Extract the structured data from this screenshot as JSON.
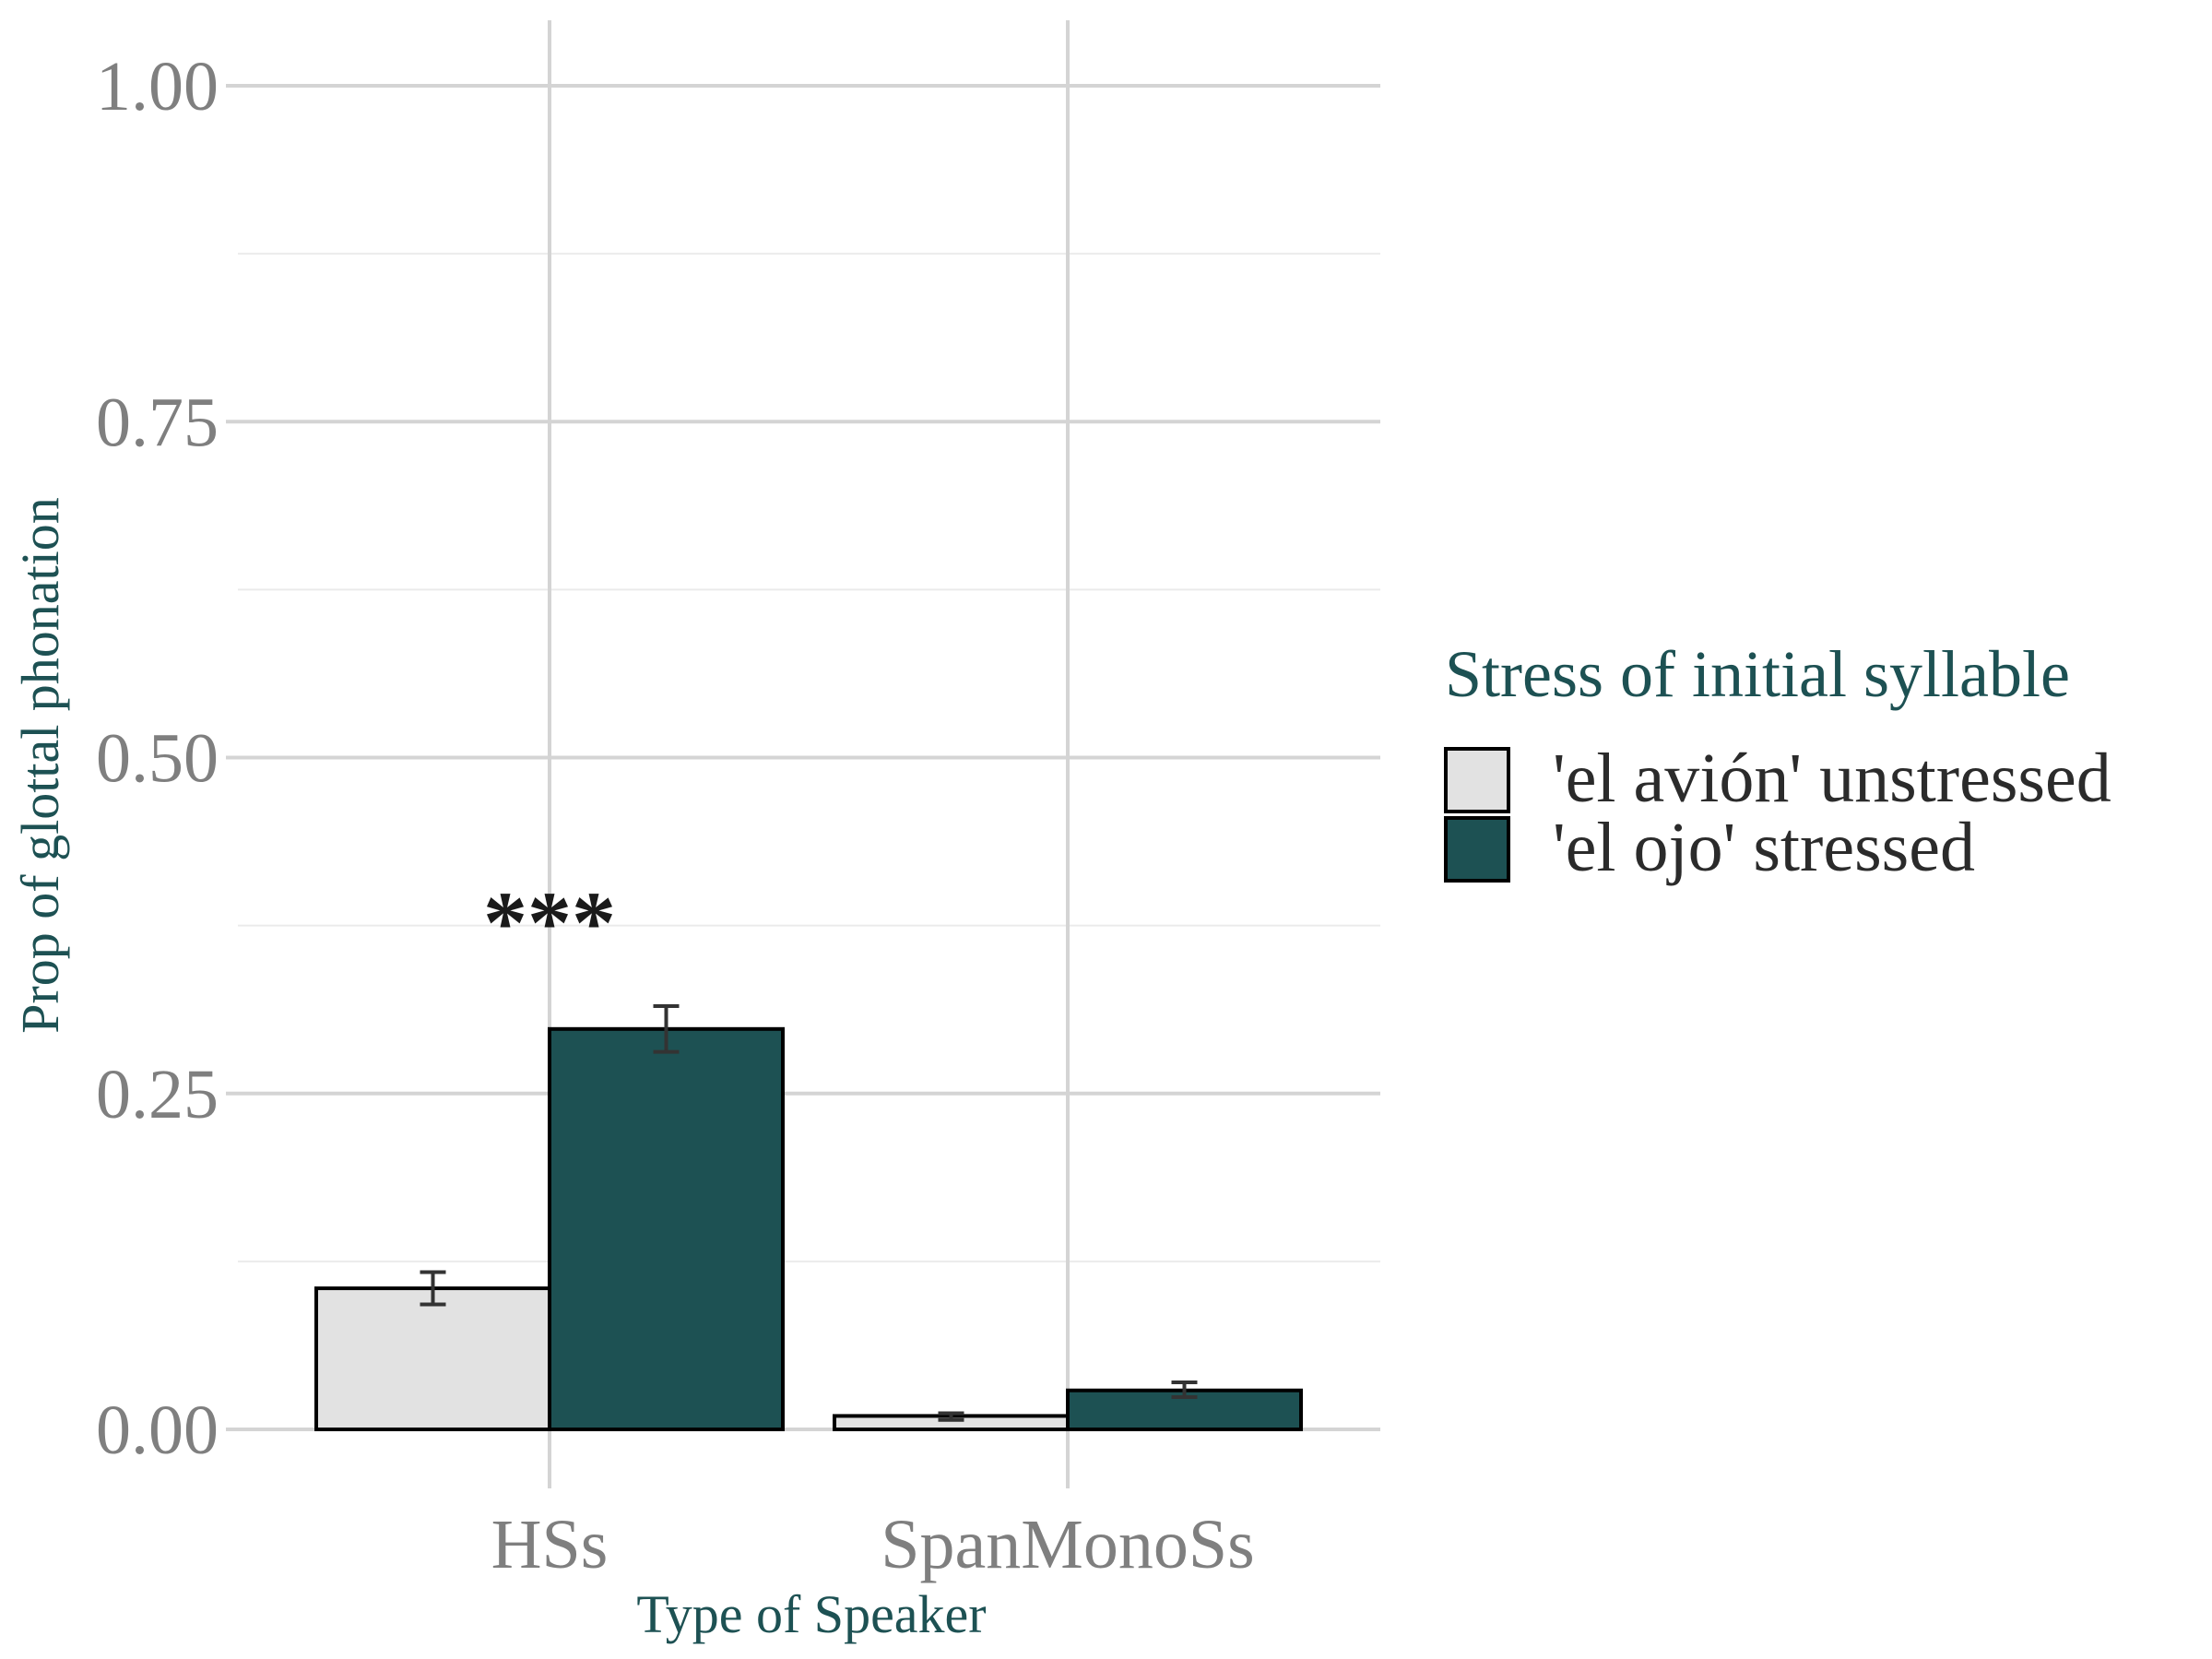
{
  "chart_data": {
    "type": "bar",
    "xlabel": "Type of Speaker",
    "ylabel": "Prop of glottal phonation",
    "ylim": [
      0,
      1
    ],
    "yticks": [
      "0.00",
      "0.25",
      "0.50",
      "0.75",
      "1.00"
    ],
    "grid": true,
    "categories": [
      "HSs",
      "SpanMonoSs"
    ],
    "legend": {
      "title": "Stress of initial syllable",
      "placement": "right"
    },
    "series": [
      {
        "name": "'el avión' unstressed",
        "color": "#e2e2e2",
        "values": [
          0.105,
          0.01
        ],
        "error": [
          [
            0.093,
            0.117
          ],
          [
            0.007,
            0.012
          ]
        ]
      },
      {
        "name": "'el ojo' stressed",
        "color": "#1d5153",
        "values": [
          0.298,
          0.029
        ],
        "error": [
          [
            0.281,
            0.315
          ],
          [
            0.024,
            0.035
          ]
        ]
      }
    ],
    "annotations": [
      {
        "text": "***",
        "category": "HSs",
        "y": 0.4
      }
    ],
    "colors": {
      "axis_title": "#1d5153",
      "legend_title": "#1d5153",
      "tick_text": "#7f7f7f",
      "grid_major": "#d4d4d4",
      "grid_minor": "#ebebeb"
    }
  }
}
